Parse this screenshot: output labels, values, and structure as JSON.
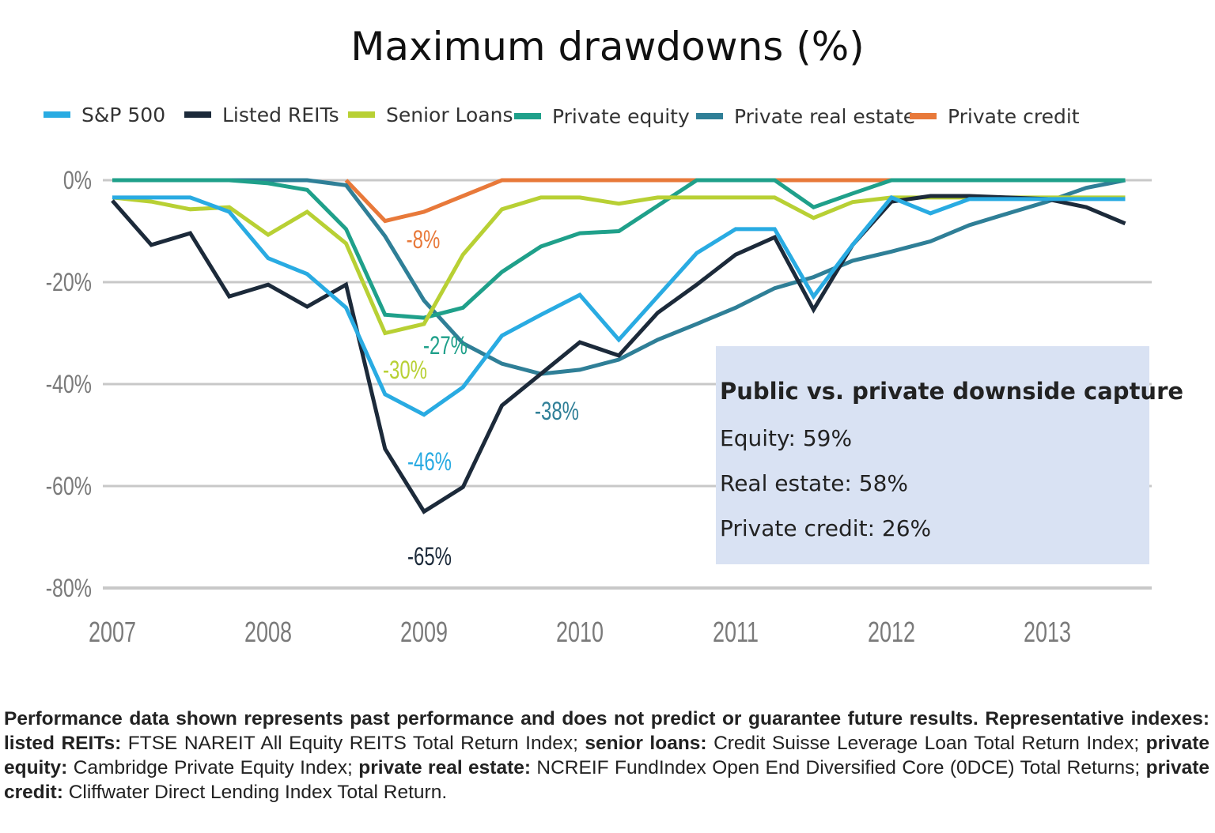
{
  "chart_data": {
    "type": "line",
    "title": "Maximum drawdowns (%)",
    "xlabel": "",
    "ylabel": "",
    "x_tick_labels": [
      "2007",
      "2008",
      "2009",
      "2010",
      "2011",
      "2012",
      "2013"
    ],
    "y_tick_labels": [
      "0%",
      "-20%",
      "-40%",
      "-60%",
      "-80%"
    ],
    "y_ticks": [
      0,
      -20,
      -40,
      -60,
      -80
    ],
    "xlim": [
      2007,
      2013.7
    ],
    "ylim": [
      -80,
      0
    ],
    "grid": "horizontal",
    "legend_position": "top",
    "x": [
      2007,
      2007.25,
      2007.5,
      2007.75,
      2008,
      2008.25,
      2008.5,
      2008.75,
      2009,
      2009.25,
      2009.5,
      2009.75,
      2010,
      2010.25,
      2010.5,
      2010.75,
      2011,
      2011.25,
      2011.5,
      2011.75,
      2012,
      2012.25,
      2012.5,
      2012.75,
      2013,
      2013.25,
      2013.5
    ],
    "series": [
      {
        "name": "Private credit",
        "color": "#e8793a",
        "values": [
          null,
          null,
          null,
          null,
          null,
          null,
          0,
          -8,
          -6.2,
          -3.1,
          0,
          0,
          0,
          0,
          0,
          0,
          0,
          0,
          0,
          0,
          0,
          0,
          0,
          0,
          0,
          0,
          0
        ]
      },
      {
        "name": "Private real estate",
        "color": "#2f7f97",
        "values": [
          0,
          0,
          0,
          0,
          0,
          0,
          -1,
          -11,
          -23.6,
          -32,
          -36,
          -38,
          -37.2,
          -35.2,
          -31.3,
          -28.2,
          -25,
          -21.2,
          -19,
          -15.8,
          -14,
          -12,
          -8.8,
          -6.5,
          -4.2,
          -1.5,
          0
        ]
      },
      {
        "name": "Private equity",
        "color": "#1fa08a",
        "values": [
          0,
          0,
          0,
          0,
          -0.6,
          -1.9,
          -9.6,
          -26.4,
          -27,
          -25,
          -18,
          -13,
          -10.4,
          -10,
          -5,
          0,
          0,
          0,
          -5.3,
          -2.6,
          0,
          0,
          0,
          0,
          0,
          0,
          0
        ]
      },
      {
        "name": "Senior Loans",
        "color": "#b8d034",
        "values": [
          -3.4,
          -4.2,
          -5.7,
          -5.3,
          -10.7,
          -6.2,
          -12.4,
          -30,
          -28.2,
          -14.6,
          -5.7,
          -3.4,
          -3.4,
          -4.6,
          -3.4,
          -3.4,
          -3.4,
          -3.4,
          -7.4,
          -4.3,
          -3.4,
          -3.4,
          -3.4,
          -3.4,
          -3.4,
          -3.4,
          -3.4
        ]
      },
      {
        "name": "Listed REITs",
        "color": "#1c2a3a",
        "values": [
          -4,
          -12.7,
          -10.4,
          -22.8,
          -20.5,
          -24.8,
          -20.5,
          -52.7,
          -65,
          -60.2,
          -44.2,
          -38,
          -31.8,
          -34.4,
          -26,
          -20.5,
          -14.6,
          -11.2,
          -25.4,
          -12.7,
          -4.2,
          -3.1,
          -3.1,
          -3.4,
          -3.7,
          -5.3,
          -8.5
        ]
      },
      {
        "name": "S&P 500",
        "color": "#29abe2",
        "values": [
          -3.4,
          -3.4,
          -3.4,
          -6.2,
          -15.3,
          -18.4,
          -25,
          -42,
          -46,
          -40.6,
          -30.5,
          -26.4,
          -22.5,
          -31.3,
          -22.8,
          -14.3,
          -9.6,
          -9.6,
          -22.8,
          -12.7,
          -3.4,
          -6.5,
          -3.7,
          -3.7,
          -3.7,
          -3.7,
          -3.7
        ]
      }
    ],
    "legend": [
      {
        "name": "S&P 500",
        "color": "#29abe2"
      },
      {
        "name": "Listed REITs",
        "color": "#1c2a3a"
      },
      {
        "name": "Senior Loans",
        "color": "#b8d034"
      },
      {
        "name": "Private equity",
        "color": "#1fa08a"
      },
      {
        "name": "Private real estate",
        "color": "#2f7f97"
      },
      {
        "name": "Private credit",
        "color": "#e8793a"
      }
    ],
    "annotations": [
      {
        "text": "-8%",
        "series": "Private credit",
        "x": 2008.75,
        "y": -8,
        "color": "#e8793a"
      },
      {
        "text": "-27%",
        "series": "Private equity",
        "x": 2009,
        "y": -27,
        "color": "#1fa08a"
      },
      {
        "text": "-30%",
        "series": "Senior Loans",
        "x": 2008.75,
        "y": -30,
        "color": "#b8d034"
      },
      {
        "text": "-46%",
        "series": "S&P 500",
        "x": 2009,
        "y": -46,
        "color": "#29abe2"
      },
      {
        "text": "-38%",
        "series": "Private real estate",
        "x": 2009.75,
        "y": -38,
        "color": "#2f7f97"
      },
      {
        "text": "-65%",
        "series": "Listed REITs",
        "x": 2009,
        "y": -65,
        "color": "#1c2a3a"
      }
    ]
  },
  "callout": {
    "heading": "Public vs. private downside capture",
    "lines": [
      "Equity: 59%",
      "Real estate: 58%",
      "Private credit: 26%"
    ],
    "background": "#d9e2f3"
  },
  "footnote": {
    "segments": [
      {
        "text": "Performance data shown represents past performance and does not predict or guarantee future results. Representative indexes: listed REITs:",
        "bold": true
      },
      {
        "text": " FTSE NAREIT All Equity REITS Total Return Index; ",
        "bold": false
      },
      {
        "text": "senior loans:",
        "bold": true
      },
      {
        "text": " Credit Suisse Leverage Loan Total Return Index; ",
        "bold": false
      },
      {
        "text": "private equity:",
        "bold": true
      },
      {
        "text": " Cambridge Private Equity Index; ",
        "bold": false
      },
      {
        "text": "private real estate:",
        "bold": true
      },
      {
        "text": " NCREIF FundIndex Open End Diversified Core (0DCE) Total Returns; ",
        "bold": false
      },
      {
        "text": "private credit:",
        "bold": true
      },
      {
        "text": " Cliffwater Direct Lending Index Total Return.",
        "bold": false
      }
    ]
  }
}
